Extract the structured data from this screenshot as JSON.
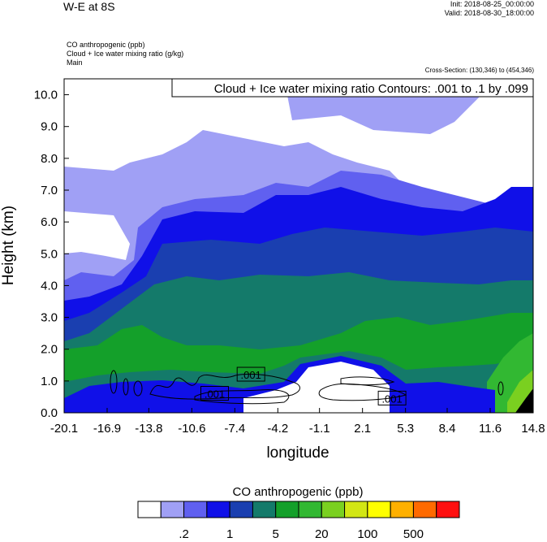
{
  "header": {
    "title": "W-E at 8S",
    "init": "Init: 2018-08-25_00:00:00",
    "valid": "Valid: 2018-08-30_18:00:00",
    "field1": "CO anthropogenic   (ppb)",
    "field2": "Cloud + Ice water mixing ratio   (g/kg)",
    "field3": "Main",
    "cross_section": "Cross-Section: (130,346) to (454,346)"
  },
  "chart_data": {
    "type": "heatmap",
    "title": "Cloud + Ice water mixing ratio Contours: .001 to .1 by .099",
    "xlabel": "longitude",
    "ylabel": "Height (km)",
    "x_ticks": [
      "-20.1",
      "-16.9",
      "-13.8",
      "-10.6",
      "-7.4",
      "-4.2",
      "-1.1",
      "2.1",
      "5.3",
      "8.4",
      "11.6",
      "14.8"
    ],
    "y_ticks": [
      "0.0",
      "1.0",
      "2.0",
      "3.0",
      "4.0",
      "5.0",
      "6.0",
      "7.0",
      "8.0",
      "9.0",
      "10.0"
    ],
    "xlim": [
      -20.1,
      14.8
    ],
    "ylim": [
      0,
      10.5
    ],
    "contour_labels": [
      {
        "text": ".001",
        "x": -6.2,
        "y": 1.2
      },
      {
        "text": ".001",
        "x": -8.9,
        "y": 0.6
      },
      {
        "text": ".001",
        "x": 4.3,
        "y": 0.45
      }
    ],
    "colorbar": {
      "title": "CO anthropogenic  (ppb)",
      "colors": [
        "#ffffff",
        "#a0a0f5",
        "#6060f0",
        "#1010e8",
        "#1a3fb0",
        "#147a6a",
        "#14a02a",
        "#32b832",
        "#7ad020",
        "#d2e614",
        "#ffff00",
        "#ffb000",
        "#ff6a00",
        "#ff1010"
      ],
      "labels": [
        {
          "text": ".2",
          "after_box": 2
        },
        {
          "text": "1",
          "after_box": 4
        },
        {
          "text": "5",
          "after_box": 6
        },
        {
          "text": "20",
          "after_box": 8
        },
        {
          "text": "100",
          "after_box": 10
        },
        {
          "text": "500",
          "after_box": 12
        }
      ]
    }
  }
}
